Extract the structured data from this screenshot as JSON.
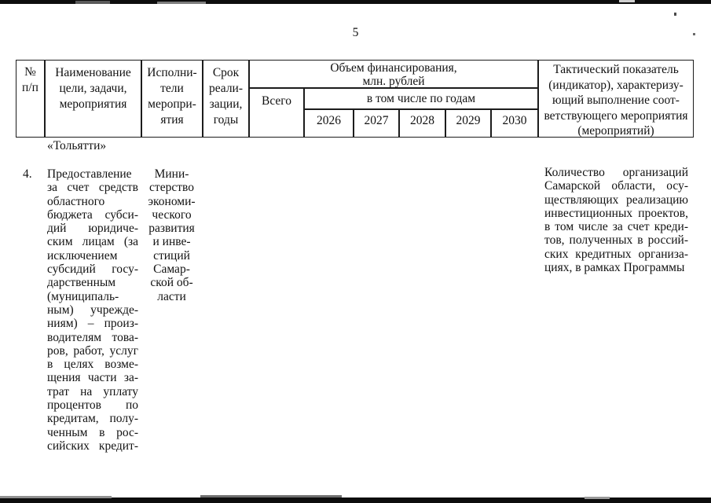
{
  "doc": {
    "page_number": "5"
  },
  "table_header": {
    "num_lines": [
      "№",
      "п/п"
    ],
    "name_lines": [
      "Наименование",
      "цели, задачи,",
      "мероприятия"
    ],
    "executors_lines": [
      "Исполни-",
      "тели",
      "меропри-",
      "ятия"
    ],
    "term_lines": [
      "Срок",
      "реали-",
      "зации,",
      "годы"
    ],
    "financing_lines": [
      "Объем финансирования,",
      "млн. рублей"
    ],
    "total_label": "Всего",
    "by_years_label": "в том числе по годам",
    "years": [
      "2026",
      "2027",
      "2028",
      "2029",
      "2030"
    ],
    "indicator_lines": [
      "Тактический показатель",
      "(индикатор), характеризу-",
      "ющий выполнение соот-",
      "ветствующего мероприятия",
      "(мероприятий)"
    ]
  },
  "body": {
    "carryover_text": "«Тольятти»",
    "row": {
      "num": "4.",
      "name_lines": [
        "Предоставление",
        "за счет средств",
        "областного",
        "бюджета субси-",
        "дий юридиче-",
        "ским лицам (за",
        "исключением",
        "субсидий госу-",
        "дарственным",
        "(муниципаль-",
        "ным) учрежде-",
        "ниям) – произ-",
        "водителям това-",
        "ров, работ, услуг",
        "в целях возме-",
        "щения части за-",
        "трат на уплату",
        "процентов по",
        "кредитам, полу-",
        "ченным в рос-",
        "сийских кредит-"
      ],
      "executor_lines": [
        "Мини-",
        "стерство",
        "экономи-",
        "ческого",
        "развития",
        "и инве-",
        "стиций",
        "Самар-",
        "ской об-",
        "ласти"
      ],
      "indicator_lines": [
        "Количество организаций",
        "Самарской области, осу-",
        "ществляющих реализацию",
        "инвестиционных проектов,",
        "в том числе за счет креди-",
        "тов, полученных в россий-",
        "ских кредитных организа-",
        "циях, в рамках Программы"
      ]
    }
  },
  "colors": {
    "paper": "#ffffff",
    "ink": "#121212",
    "scan_bar": "#0d0d0d"
  }
}
